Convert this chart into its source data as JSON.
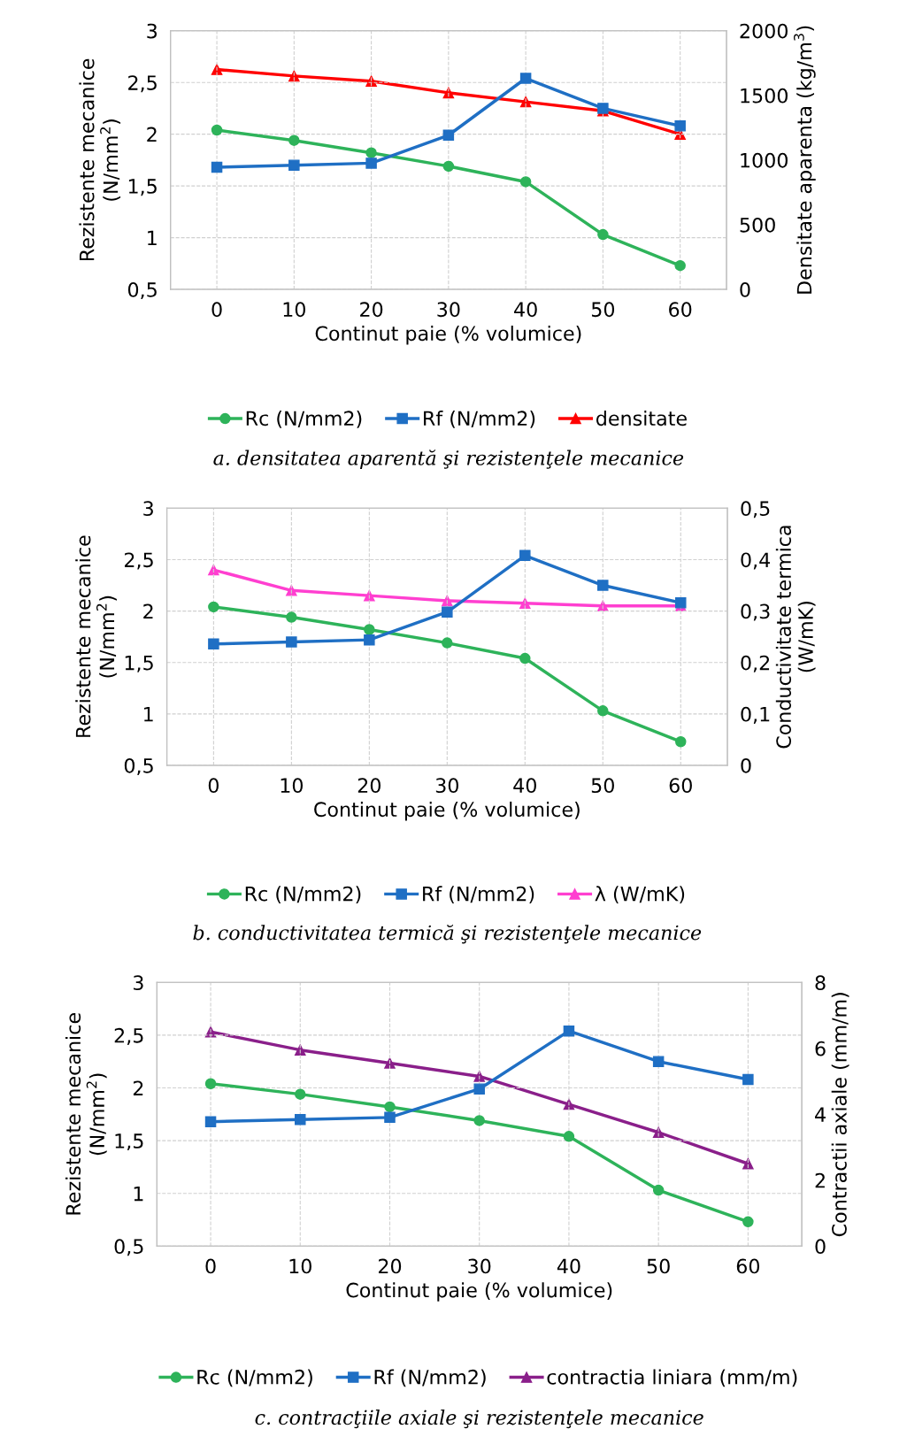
{
  "chart_data": [
    {
      "type": "line",
      "categories": [
        "0",
        "10",
        "20",
        "30",
        "40",
        "50",
        "60"
      ],
      "xlabel": "Continut paie (% volumice)",
      "ylabel": "Rezistente mecanice\n(N/mm$^{2}$)",
      "y2label": "Densitate aparenta (kg/m$^{3}$)",
      "ylim": [
        0.5,
        3
      ],
      "yticks": [
        {
          "value": 0.5,
          "label": "0,5"
        },
        1,
        {
          "value": 1.5,
          "label": "1,5"
        },
        2,
        {
          "value": 2.5,
          "label": "2,5"
        },
        3
      ],
      "y2lim": [
        0,
        2000
      ],
      "y2ticks": [
        0,
        500,
        1000,
        1500,
        2000
      ],
      "grid": true,
      "legend": "bottom",
      "series": [
        {
          "name": "Rc (N/mm2)",
          "color": "#2eb35a",
          "marker": "circle",
          "values": [
            2.04,
            1.94,
            1.82,
            1.69,
            1.54,
            1.03,
            0.73
          ]
        },
        {
          "name": "Rf (N/mm2)",
          "color": "#1f6fc4",
          "marker": "square",
          "values": [
            1.68,
            1.7,
            1.72,
            1.99,
            2.54,
            2.25,
            2.08
          ]
        },
        {
          "name": "densitate",
          "color": "#ff0000",
          "marker": "triangle",
          "axis": "y2",
          "values": [
            1700,
            1650,
            1610,
            1520,
            1450,
            1380,
            1200
          ]
        }
      ],
      "annotations": [
        "a. densitatea aparentă şi rezistenţele mecanice"
      ]
    },
    {
      "type": "line",
      "categories": [
        "0",
        "10",
        "20",
        "30",
        "40",
        "50",
        "60"
      ],
      "xlabel": "Continut paie (% volumice)",
      "ylabel": "Rezistente mecanice\n(N/mm$^{2}$)",
      "y2label": "Conductivitate termica\n(W/mK)",
      "ylim": [
        0.5,
        3
      ],
      "yticks": [
        {
          "value": 0.5,
          "label": "0,5"
        },
        1,
        {
          "value": 1.5,
          "label": "1,5"
        },
        2,
        {
          "value": 2.5,
          "label": "2,5"
        },
        3
      ],
      "y2lim": [
        0,
        0.5
      ],
      "y2ticks": [
        0,
        {
          "value": 0.1,
          "label": "0,1"
        },
        {
          "value": 0.2,
          "label": "0,2"
        },
        {
          "value": 0.3,
          "label": "0,3"
        },
        {
          "value": 0.4,
          "label": "0,4"
        },
        {
          "value": 0.5,
          "label": "0,5"
        }
      ],
      "grid": true,
      "legend": "bottom",
      "series": [
        {
          "name": "Rc (N/mm2)",
          "color": "#2eb35a",
          "marker": "circle",
          "values": [
            2.04,
            1.94,
            1.82,
            1.69,
            1.54,
            1.03,
            0.73
          ]
        },
        {
          "name": "Rf (N/mm2)",
          "color": "#1f6fc4",
          "marker": "square",
          "values": [
            1.68,
            1.7,
            1.72,
            1.99,
            2.54,
            2.25,
            2.08
          ]
        },
        {
          "name": "λ (W/mK)",
          "color": "#ff3fd0",
          "marker": "triangle",
          "axis": "y2",
          "values": [
            0.38,
            0.34,
            0.33,
            0.32,
            0.315,
            0.31,
            0.31
          ]
        }
      ],
      "annotations": [
        "b. conductivitatea termică şi rezistenţele mecanice"
      ]
    },
    {
      "type": "line",
      "categories": [
        "0",
        "10",
        "20",
        "30",
        "40",
        "50",
        "60"
      ],
      "xlabel": "Continut paie (% volumice)",
      "ylabel": "Rezistente mecanice\n(N/mm$^{2}$)",
      "y2label": "Contractii axiale (mm/m)",
      "ylim": [
        0.5,
        3
      ],
      "yticks": [
        {
          "value": 0.5,
          "label": "0,5"
        },
        1,
        {
          "value": 1.5,
          "label": "1,5"
        },
        2,
        {
          "value": 2.5,
          "label": "2,5"
        },
        3
      ],
      "y2lim": [
        0,
        8
      ],
      "y2ticks": [
        0,
        2,
        4,
        6,
        8
      ],
      "grid": true,
      "legend": "bottom",
      "series": [
        {
          "name": "Rc (N/mm2)",
          "color": "#2eb35a",
          "marker": "circle",
          "values": [
            2.04,
            1.94,
            1.82,
            1.69,
            1.54,
            1.03,
            0.73
          ]
        },
        {
          "name": "Rf (N/mm2)",
          "color": "#1f6fc4",
          "marker": "square",
          "values": [
            1.68,
            1.7,
            1.72,
            1.99,
            2.54,
            2.25,
            2.08
          ]
        },
        {
          "name": "contractia liniara (mm/m)",
          "color": "#8a1f8a",
          "marker": "triangle",
          "axis": "y2",
          "values": [
            6.5,
            5.95,
            5.55,
            5.15,
            4.3,
            3.45,
            2.5
          ]
        }
      ],
      "annotations": [
        "c. contracţiile axiale şi rezistenţele mecanice"
      ]
    }
  ]
}
